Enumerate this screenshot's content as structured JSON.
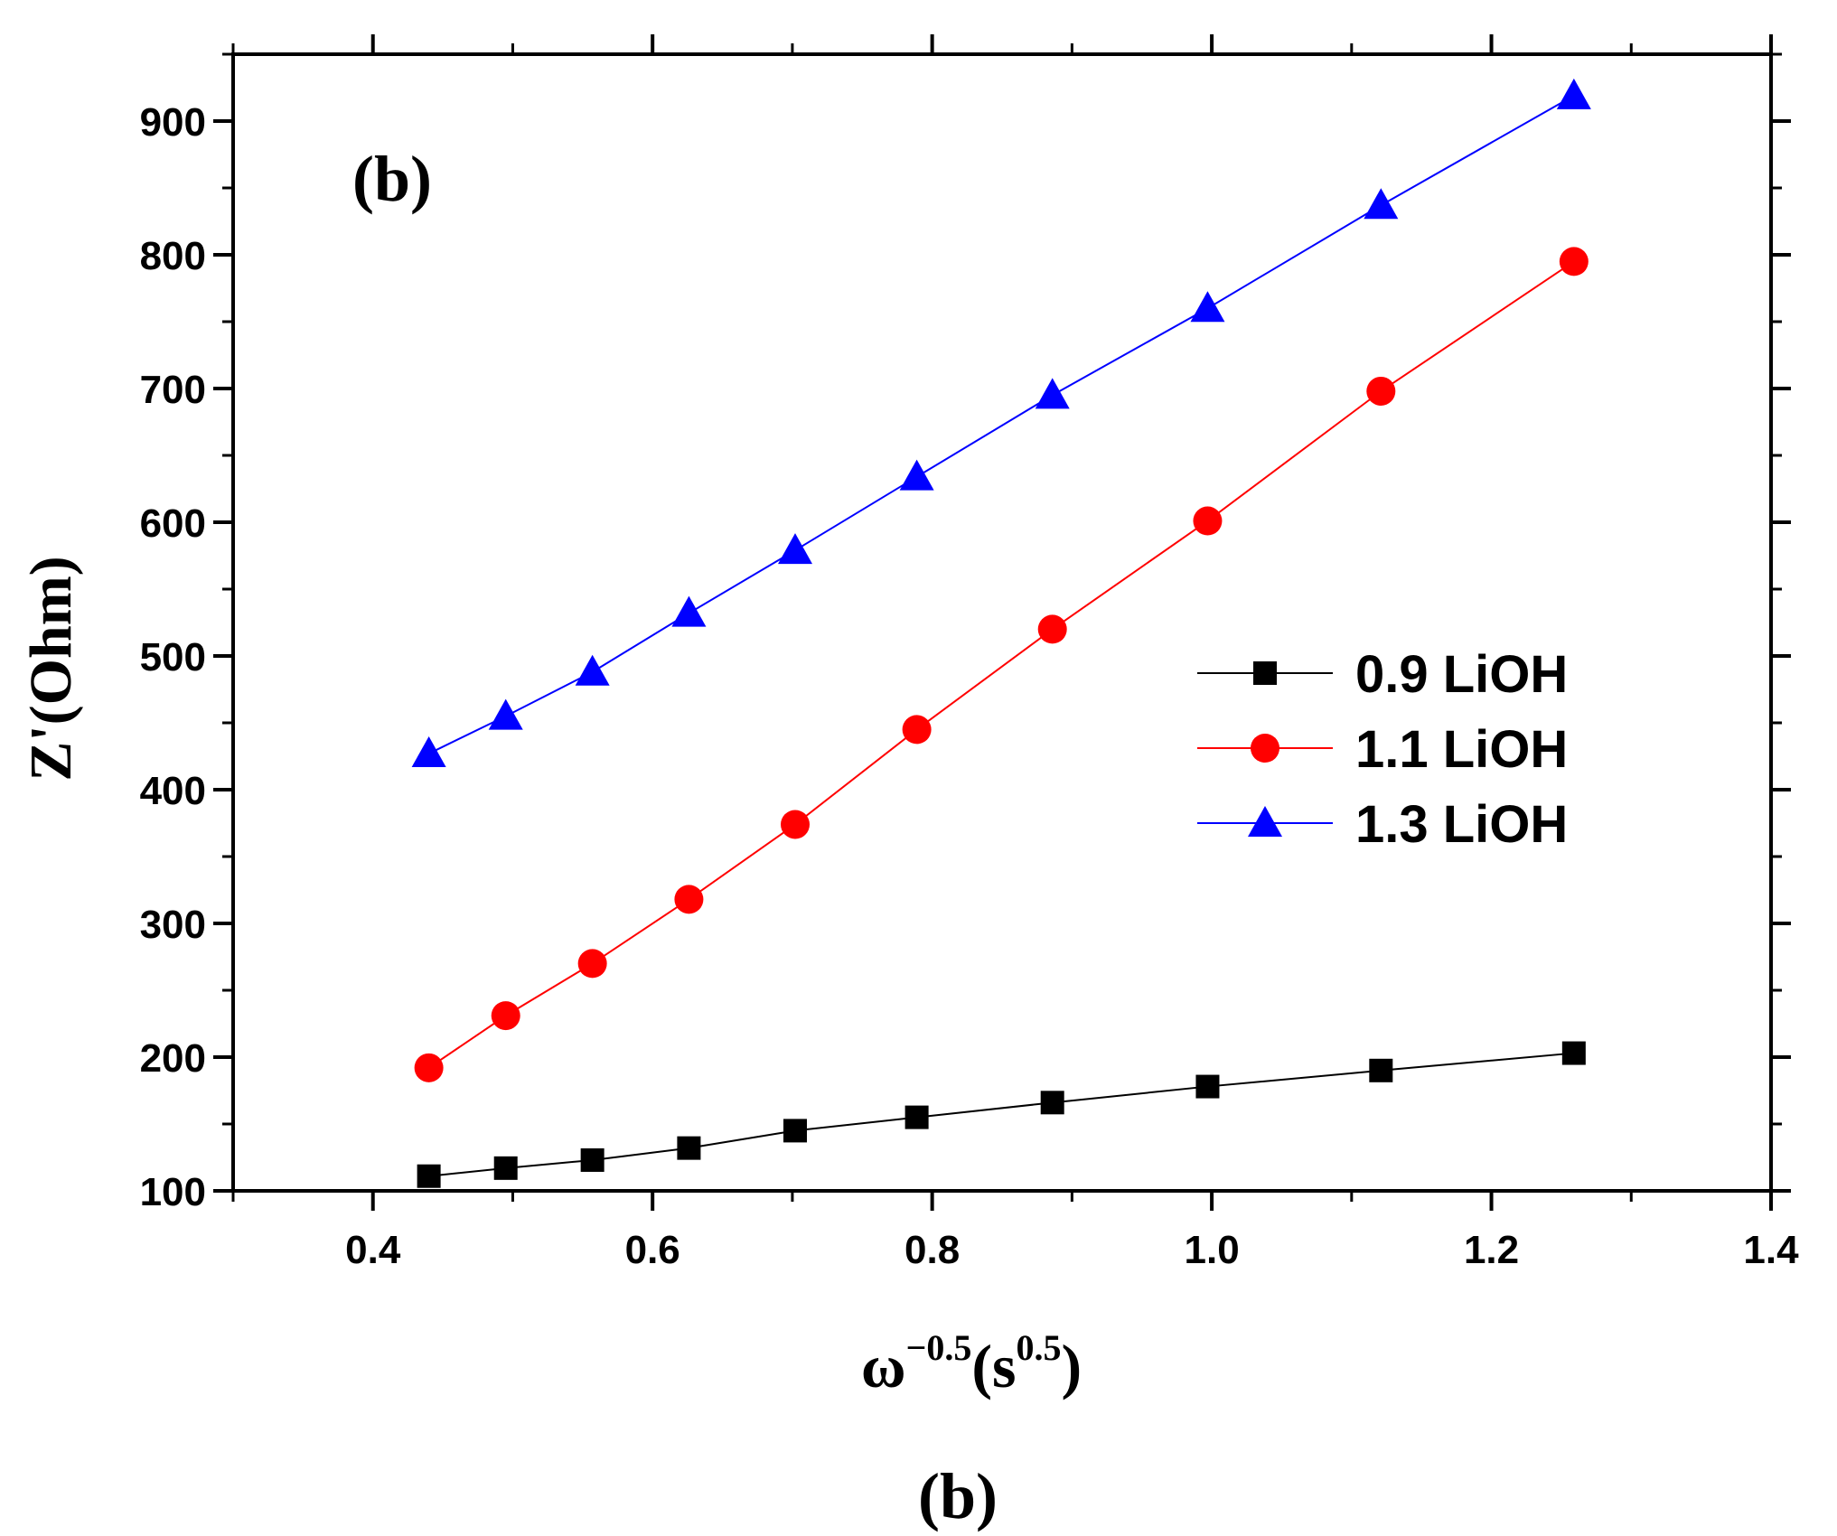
{
  "chart_data": {
    "type": "line",
    "panel_label": "(b)",
    "caption": "(b)",
    "xlabel": {
      "base": "ω",
      "exp1": "−0.5",
      "mid": "(s",
      "exp2": "0.5",
      "end": ")"
    },
    "ylabel": "Z'(Ohm)",
    "xlim": [
      0.3,
      1.4
    ],
    "ylim": [
      100,
      950
    ],
    "xticks": [
      0.4,
      0.6,
      0.8,
      1.0,
      1.2,
      1.4
    ],
    "xtick_labels": [
      "0.4",
      "0.6",
      "0.8",
      "1.0",
      "1.2",
      "1.4"
    ],
    "yticks": [
      100,
      200,
      300,
      400,
      500,
      600,
      700,
      800,
      900
    ],
    "ytick_labels": [
      "100",
      "200",
      "300",
      "400",
      "500",
      "600",
      "700",
      "800",
      "900"
    ],
    "x": [
      0.44,
      0.495,
      0.557,
      0.626,
      0.702,
      0.789,
      0.886,
      0.997,
      1.121,
      1.259
    ],
    "series": [
      {
        "name": "0.9 LiOH",
        "color": "#000000",
        "marker": "square",
        "values": [
          111,
          117,
          123,
          132,
          145,
          155,
          166,
          178,
          190,
          203
        ]
      },
      {
        "name": "1.1 LiOH",
        "color": "#ff0000",
        "marker": "circle",
        "values": [
          192,
          231,
          270,
          318,
          374,
          445,
          520,
          601,
          698,
          795
        ]
      },
      {
        "name": "1.3 LiOH",
        "color": "#0000ff",
        "marker": "triangle",
        "values": [
          427,
          455,
          488,
          532,
          579,
          634,
          695,
          760,
          837,
          919
        ]
      }
    ],
    "legend_position": "center-right",
    "grid": false
  }
}
